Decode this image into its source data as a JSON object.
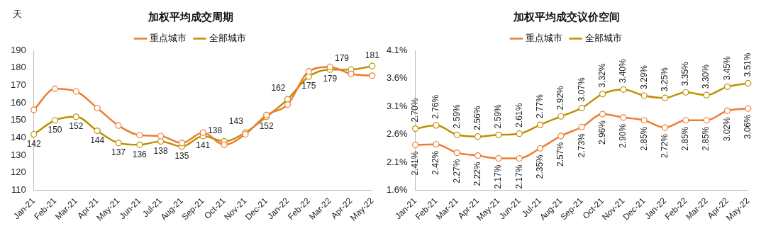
{
  "chart_data": [
    {
      "type": "line",
      "title": "加权平均成交周期",
      "ylabel": "天",
      "categories": [
        "Jan-21",
        "Feb-21",
        "Mar-21",
        "Apr-21",
        "May-21",
        "Jun-21",
        "Jul-21",
        "Aug-21",
        "Sep-21",
        "Oct-21",
        "Nov-21",
        "Dec-21",
        "Jan-22",
        "Feb-22",
        "Mar-22",
        "Apr-22",
        "May-22"
      ],
      "series": [
        {
          "name": "重点城市",
          "color": "#ed7d31",
          "values": [
            156,
            168,
            166.5,
            157,
            147,
            141.5,
            141,
            137,
            143,
            136,
            142,
            153,
            159,
            178,
            180.5,
            176.5,
            175.5
          ]
        },
        {
          "name": "全部城市",
          "color": "#bf9000",
          "values": [
            142,
            150,
            152,
            144,
            137,
            136,
            138,
            135,
            141,
            138,
            143,
            152,
            162,
            175,
            179,
            179,
            181
          ],
          "value_labels": [
            "142",
            "150",
            "152",
            "144",
            "137",
            "136",
            "138",
            "135",
            "141",
            "138",
            "143",
            "152",
            "162",
            "175",
            "179",
            "179",
            "181"
          ]
        }
      ],
      "ylim": [
        110,
        190
      ],
      "yticks": [
        110,
        120,
        130,
        140,
        150,
        160,
        170,
        180,
        190
      ],
      "grid": false,
      "legend": "top",
      "marker": "circle",
      "line_style": "solid"
    },
    {
      "type": "line",
      "title": "加权平均成交议价空间",
      "categories": [
        "Jan-21",
        "Feb-21",
        "Mar-21",
        "Apr-21",
        "May-21",
        "Jun-21",
        "Jul-21",
        "Aug-21",
        "Sep-21",
        "Oct-21",
        "Nov-21",
        "Dec-21",
        "Jan-22",
        "Feb-22",
        "Mar-22",
        "Apr-22",
        "May-22"
      ],
      "series": [
        {
          "name": "重点城市",
          "color": "#ed7d31",
          "values": [
            2.41,
            2.42,
            2.27,
            2.22,
            2.17,
            2.17,
            2.35,
            2.57,
            2.73,
            2.96,
            2.9,
            2.85,
            2.72,
            2.85,
            2.85,
            3.02,
            3.06
          ],
          "value_labels": [
            "2.41%",
            "2.42%",
            "2.27%",
            "2.22%",
            "2.17%",
            "2.17%",
            "2.35%",
            "2.57%",
            "2.73%",
            "2.96%",
            "2.90%",
            "2.85%",
            "2.72%",
            "2.85%",
            "2.85%",
            "3.02%",
            "3.06%"
          ]
        },
        {
          "name": "全部城市",
          "color": "#bf9000",
          "values": [
            2.7,
            2.76,
            2.59,
            2.56,
            2.59,
            2.61,
            2.77,
            2.92,
            3.07,
            3.32,
            3.4,
            3.29,
            3.25,
            3.35,
            3.3,
            3.45,
            3.51
          ],
          "value_labels": [
            "2.70%",
            "2.76%",
            "2.59%",
            "2.56%",
            "2.59%",
            "2.61%",
            "2.77%",
            "2.92%",
            "3.07%",
            "3.32%",
            "3.40%",
            "3.29%",
            "3.25%",
            "3.35%",
            "3.30%",
            "3.45%",
            "3.51%"
          ]
        }
      ],
      "ylim": [
        1.6,
        4.1
      ],
      "yticks": [
        {
          "value": 1.6,
          "label": "1.6%"
        },
        {
          "value": 2.1,
          "label": "2.1%"
        },
        {
          "value": 2.6,
          "label": "2.6%"
        },
        {
          "value": 3.1,
          "label": "3.1%"
        },
        {
          "value": 3.6,
          "label": "3.6%"
        },
        {
          "value": 4.1,
          "label": "4.1%"
        }
      ],
      "grid": false,
      "legend": "top",
      "marker": "circle",
      "line_style": "solid"
    }
  ]
}
